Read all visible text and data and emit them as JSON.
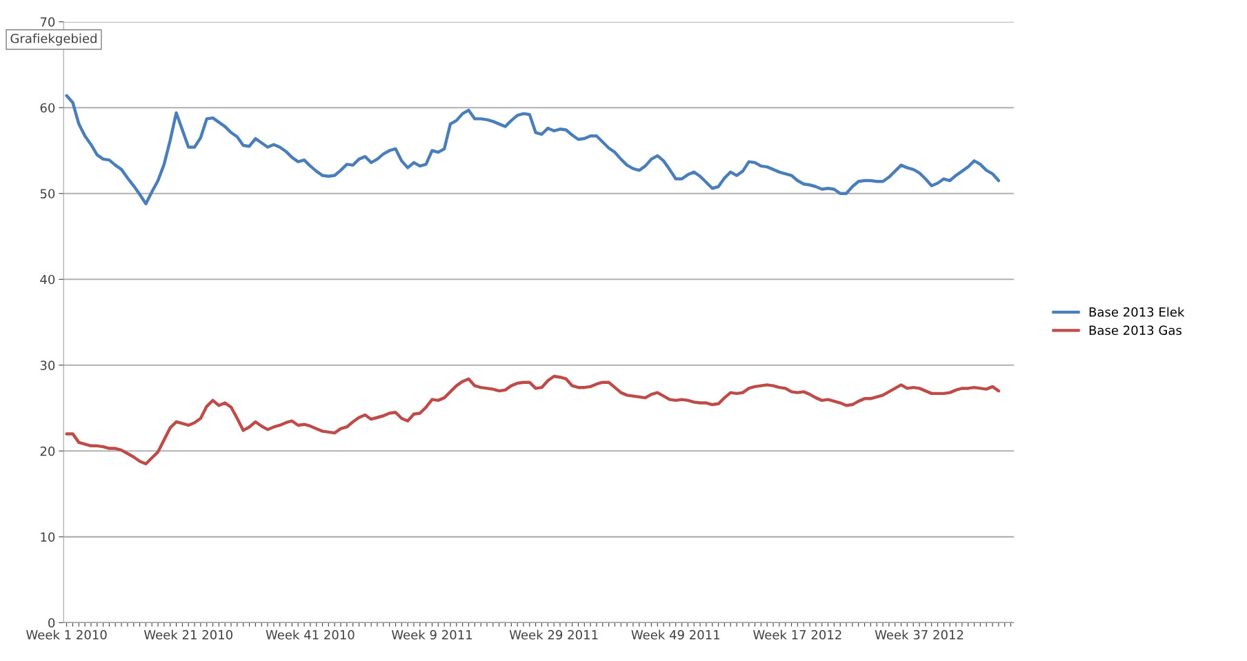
{
  "chart_data": {
    "type": "line",
    "annotations": [
      "Grafiekgebied"
    ],
    "categories": [
      "Week 1 2010",
      null,
      null,
      null,
      null,
      null,
      null,
      null,
      null,
      null,
      null,
      null,
      null,
      null,
      null,
      null,
      null,
      null,
      null,
      null,
      "Week 21 2010",
      null,
      null,
      null,
      null,
      null,
      null,
      null,
      null,
      null,
      null,
      null,
      null,
      null,
      null,
      null,
      null,
      null,
      null,
      null,
      "Week 41 2010",
      null,
      null,
      null,
      null,
      null,
      null,
      null,
      null,
      null,
      null,
      null,
      null,
      null,
      null,
      null,
      null,
      null,
      null,
      null,
      "Week 9 2011",
      null,
      null,
      null,
      null,
      null,
      null,
      null,
      null,
      null,
      null,
      null,
      null,
      null,
      null,
      null,
      null,
      null,
      null,
      null,
      "Week 29 2011",
      null,
      null,
      null,
      null,
      null,
      null,
      null,
      null,
      null,
      null,
      null,
      null,
      null,
      null,
      null,
      null,
      null,
      null,
      null,
      "Week 49 2011",
      null,
      null,
      null,
      null,
      null,
      null,
      null,
      null,
      null,
      null,
      null,
      null,
      null,
      null,
      null,
      null,
      null,
      null,
      null,
      "Week 17 2012",
      null,
      null,
      null,
      null,
      null,
      null,
      null,
      null,
      null,
      null,
      null,
      null,
      null,
      null,
      null,
      null,
      null,
      null,
      null,
      "Week 37 2012",
      null,
      null,
      null,
      null,
      null,
      null,
      null,
      null,
      null,
      null,
      null,
      null,
      null,
      null,
      null
    ],
    "ylim": [
      0,
      70
    ],
    "yticks": [
      0,
      10,
      20,
      30,
      40,
      50,
      60,
      70
    ],
    "grid": "y",
    "legend": "right",
    "marker": "none",
    "line_style": "solid",
    "series": [
      {
        "name": "Base 2013 Elek",
        "color": "#4a7ebb",
        "values": [
          61.4,
          60.6,
          58.1,
          56.7,
          55.7,
          54.5,
          54.0,
          53.9,
          53.3,
          52.8,
          51.8,
          50.9,
          49.9,
          48.8,
          50.2,
          51.5,
          53.4,
          56.2,
          59.4,
          57.4,
          55.4,
          55.4,
          56.5,
          58.7,
          58.8,
          58.3,
          57.8,
          57.1,
          56.6,
          55.6,
          55.5,
          56.4,
          55.9,
          55.4,
          55.7,
          55.4,
          54.9,
          54.2,
          53.7,
          53.9,
          53.2,
          52.6,
          52.1,
          52.0,
          52.1,
          52.7,
          53.4,
          53.3,
          54.0,
          54.3,
          53.6,
          54.0,
          54.6,
          55.0,
          55.2,
          53.8,
          53.0,
          53.6,
          53.2,
          53.4,
          55.0,
          54.8,
          55.2,
          58.1,
          58.5,
          59.3,
          59.7,
          58.7,
          58.7,
          58.6,
          58.4,
          58.1,
          57.8,
          58.5,
          59.1,
          59.3,
          59.2,
          57.1,
          56.9,
          57.6,
          57.3,
          57.5,
          57.4,
          56.8,
          56.3,
          56.4,
          56.7,
          56.7,
          56.0,
          55.3,
          54.8,
          54.0,
          53.3,
          52.9,
          52.7,
          53.2,
          54.0,
          54.4,
          53.8,
          52.8,
          51.7,
          51.7,
          52.2,
          52.5,
          52.0,
          51.3,
          50.6,
          50.8,
          51.8,
          52.5,
          52.1,
          52.6,
          53.7,
          53.6,
          53.2,
          53.1,
          52.8,
          52.5,
          52.3,
          52.1,
          51.5,
          51.1,
          51.0,
          50.8,
          50.5,
          50.6,
          50.5,
          50.0,
          50.0,
          50.8,
          51.4,
          51.5,
          51.5,
          51.4,
          51.4,
          51.9,
          52.6,
          53.3,
          53.0,
          52.8,
          52.4,
          51.7,
          50.9,
          51.2,
          51.7,
          51.5,
          52.1,
          52.6,
          53.1,
          53.8,
          53.4,
          52.7,
          52.3,
          51.5,
          null,
          null
        ]
      },
      {
        "name": "Base 2013 Gas",
        "color": "#be4b48",
        "values": [
          22.0,
          22.0,
          21.0,
          20.8,
          20.6,
          20.6,
          20.5,
          20.3,
          20.3,
          20.1,
          19.7,
          19.3,
          18.8,
          18.5,
          19.2,
          19.9,
          21.3,
          22.7,
          23.4,
          23.2,
          23.0,
          23.3,
          23.8,
          25.2,
          25.9,
          25.3,
          25.6,
          25.1,
          23.8,
          22.4,
          22.8,
          23.4,
          22.9,
          22.5,
          22.8,
          23.0,
          23.3,
          23.5,
          23.0,
          23.1,
          22.9,
          22.6,
          22.3,
          22.2,
          22.1,
          22.6,
          22.8,
          23.4,
          23.9,
          24.2,
          23.7,
          23.9,
          24.1,
          24.4,
          24.5,
          23.8,
          23.5,
          24.3,
          24.4,
          25.1,
          26.0,
          25.9,
          26.2,
          26.9,
          27.6,
          28.1,
          28.4,
          27.6,
          27.4,
          27.3,
          27.2,
          27.0,
          27.1,
          27.6,
          27.9,
          28.0,
          28.0,
          27.3,
          27.4,
          28.2,
          28.7,
          28.6,
          28.4,
          27.6,
          27.4,
          27.4,
          27.5,
          27.8,
          28.0,
          28.0,
          27.4,
          26.8,
          26.5,
          26.4,
          26.3,
          26.2,
          26.6,
          26.8,
          26.4,
          26.0,
          25.9,
          26.0,
          25.9,
          25.7,
          25.6,
          25.6,
          25.4,
          25.5,
          26.2,
          26.8,
          26.7,
          26.8,
          27.3,
          27.5,
          27.6,
          27.7,
          27.6,
          27.4,
          27.3,
          26.9,
          26.8,
          26.9,
          26.6,
          26.2,
          25.9,
          26.0,
          25.8,
          25.6,
          25.3,
          25.4,
          25.8,
          26.1,
          26.1,
          26.3,
          26.5,
          26.9,
          27.3,
          27.7,
          27.3,
          27.4,
          27.3,
          27.0,
          26.7,
          26.7,
          26.7,
          26.8,
          27.1,
          27.3,
          27.3,
          27.4,
          27.3,
          27.2,
          27.5,
          27.0,
          null,
          null
        ]
      }
    ]
  }
}
